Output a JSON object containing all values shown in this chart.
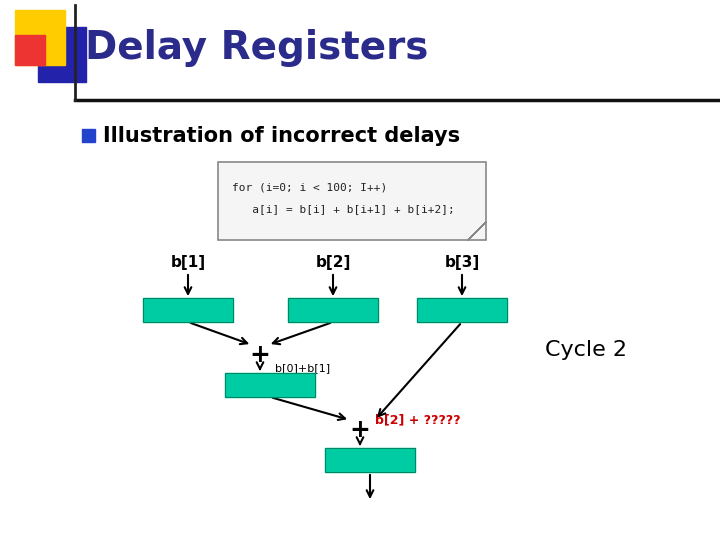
{
  "title": "Delay Registers",
  "subtitle": "Illustration of incorrect delays",
  "code_line1": "for (i=0; i < 100; I++)",
  "code_line2": "   a[i] = b[i] + b[i+1] + b[i+2];",
  "bg_color": "#ffffff",
  "title_color": "#2B2B8B",
  "subtitle_color": "#000000",
  "register_color": "#00CCA3",
  "b1_label": "b[1]",
  "b2_label": "b[2]",
  "b3_label": "b[3]",
  "sum1_label": "b[0]+b[1]",
  "sum2_label": "b[2] + ?????",
  "cycle_label": "Cycle 2",
  "red_label_color": "#CC0000",
  "header_bar_color": "#111111",
  "icon_yellow": "#FFCC00",
  "icon_red": "#EE3333",
  "icon_blue": "#2222AA",
  "bullet_color": "#2244CC"
}
